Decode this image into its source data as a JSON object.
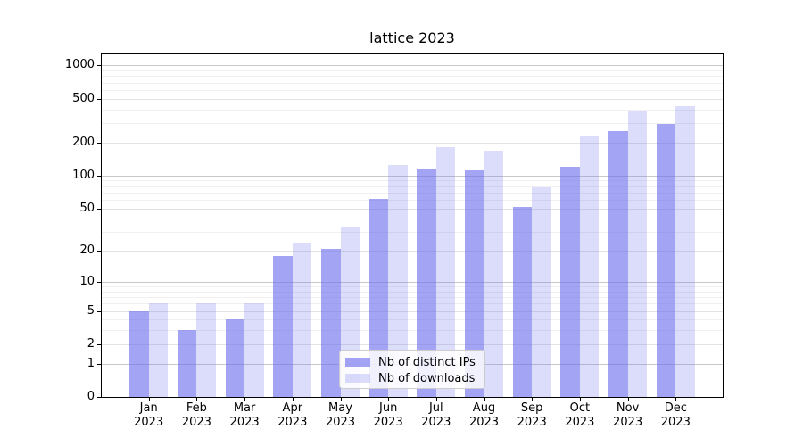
{
  "figure": {
    "title": "lattice 2023"
  },
  "colors": {
    "ips_bar": "rgba(108,108,238,0.62)",
    "downloads_bar": "rgba(108,108,238,0.24)",
    "grid_decade": "#c9c9c9",
    "grid_major": "#e3e3e3",
    "grid_minor": "#f0f0f0",
    "spine": "#000000",
    "text": "#000000"
  },
  "legend": {
    "items": [
      {
        "label": "Nb of distinct IPs",
        "color_key": "ips_bar"
      },
      {
        "label": "Nb of downloads",
        "color_key": "downloads_bar"
      }
    ]
  },
  "chart_data": {
    "type": "bar",
    "title": "lattice 2023",
    "categories": [
      "Jan",
      "Feb",
      "Mar",
      "Apr",
      "May",
      "Jun",
      "Jul",
      "Aug",
      "Sep",
      "Oct",
      "Nov",
      "Dec"
    ],
    "category_year": "2023",
    "series": [
      {
        "name": "Nb of distinct IPs",
        "values": [
          5,
          3,
          4,
          18,
          21,
          61,
          115,
          112,
          51,
          119,
          254,
          294
        ]
      },
      {
        "name": "Nb of downloads",
        "values": [
          6,
          6,
          6,
          24,
          33,
          125,
          180,
          167,
          78,
          233,
          389,
          427
        ]
      }
    ],
    "xlabel": "",
    "ylabel": "",
    "yscale": "log1p",
    "ylim": [
      0,
      1281
    ],
    "y_major_ticks": [
      0,
      1,
      2,
      5,
      10,
      20,
      50,
      100,
      200,
      500,
      1000
    ],
    "y_minor_ticks": [
      3,
      4,
      6,
      7,
      8,
      9,
      30,
      40,
      60,
      70,
      80,
      90,
      300,
      400,
      600,
      700,
      800,
      900
    ],
    "grid": true,
    "legend_position": "lower center"
  }
}
